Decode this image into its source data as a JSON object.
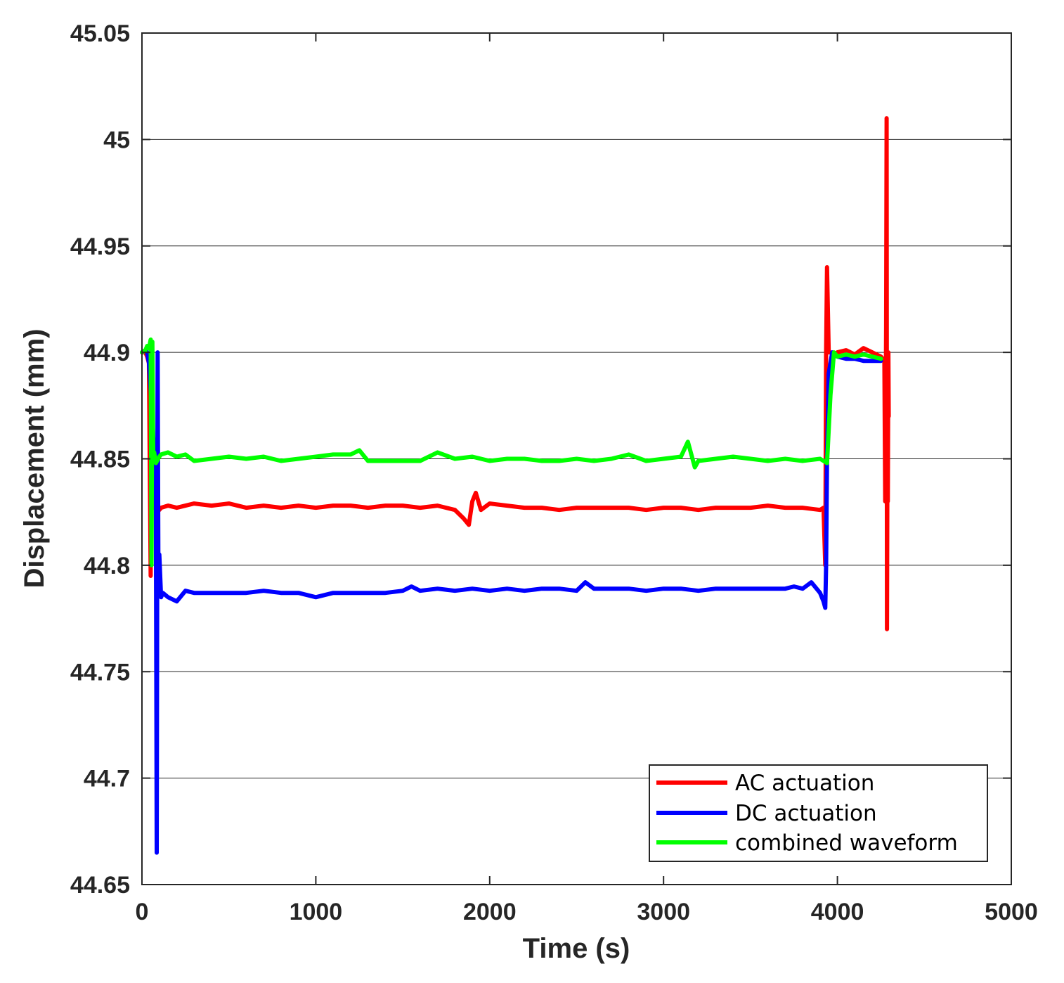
{
  "chart_data": {
    "type": "line",
    "title": "",
    "xlabel": "Time (s)",
    "ylabel": "Displacement (mm)",
    "xlim": [
      0,
      5000
    ],
    "ylim": [
      44.65,
      45.05
    ],
    "xticks": [
      0,
      1000,
      2000,
      3000,
      4000,
      5000
    ],
    "xtick_labels": [
      "0",
      "1000",
      "2000",
      "3000",
      "4000",
      "5000"
    ],
    "yticks": [
      44.65,
      44.7,
      44.75,
      44.8,
      44.85,
      44.9,
      44.95,
      45,
      45.05
    ],
    "ytick_labels": [
      "44.65",
      "44.7",
      "44.75",
      "44.8",
      "44.85",
      "44.9",
      "44.95",
      "45",
      "45.05"
    ],
    "grid": "horizontal",
    "legend": "bottom-right",
    "colors": {
      "ac": "#ff0000",
      "dc": "#0000ff",
      "combined": "#00ff00",
      "grid": "#262626",
      "axis": "#262626"
    },
    "series": [
      {
        "name": "AC actuation",
        "color": "#ff0000",
        "x": [
          0,
          20,
          30,
          40,
          50,
          55,
          60,
          70,
          80,
          90,
          100,
          110,
          150,
          200,
          300,
          400,
          500,
          600,
          700,
          800,
          900,
          1000,
          1100,
          1200,
          1300,
          1400,
          1500,
          1600,
          1700,
          1800,
          1850,
          1880,
          1900,
          1920,
          1950,
          2000,
          2100,
          2200,
          2300,
          2400,
          2500,
          2600,
          2700,
          2800,
          2900,
          3000,
          3100,
          3200,
          3300,
          3400,
          3500,
          3600,
          3700,
          3800,
          3900,
          3920,
          3930,
          3935,
          3940,
          3950,
          3960,
          3980,
          4000,
          4050,
          4100,
          4150,
          4200,
          4250,
          4270,
          4275,
          4280,
          4283,
          4285,
          4288,
          4290,
          4293,
          4295
        ],
        "y": [
          44.9,
          44.9,
          44.898,
          44.895,
          44.795,
          44.89,
          44.83,
          44.827,
          44.827,
          44.828,
          44.826,
          44.827,
          44.828,
          44.827,
          44.829,
          44.828,
          44.829,
          44.827,
          44.828,
          44.827,
          44.828,
          44.827,
          44.828,
          44.828,
          44.827,
          44.828,
          44.828,
          44.827,
          44.828,
          44.826,
          44.822,
          44.819,
          44.83,
          44.834,
          44.826,
          44.829,
          44.828,
          44.827,
          44.827,
          44.826,
          44.827,
          44.827,
          44.827,
          44.827,
          44.826,
          44.827,
          44.827,
          44.826,
          44.827,
          44.827,
          44.827,
          44.828,
          44.827,
          44.827,
          44.826,
          44.827,
          44.8,
          44.9,
          44.94,
          44.9,
          44.9,
          44.899,
          44.9,
          44.901,
          44.899,
          44.902,
          44.9,
          44.898,
          44.896,
          44.83,
          44.912,
          45.01,
          44.77,
          44.87,
          44.83,
          44.9,
          44.87
        ]
      },
      {
        "name": "DC actuation",
        "color": "#0000ff",
        "x": [
          0,
          20,
          30,
          40,
          60,
          70,
          80,
          85,
          90,
          95,
          100,
          110,
          120,
          150,
          200,
          250,
          300,
          400,
          500,
          600,
          700,
          800,
          900,
          1000,
          1100,
          1200,
          1300,
          1400,
          1500,
          1550,
          1600,
          1700,
          1800,
          1900,
          2000,
          2100,
          2200,
          2300,
          2400,
          2500,
          2550,
          2600,
          2700,
          2800,
          2900,
          3000,
          3100,
          3200,
          3300,
          3400,
          3500,
          3600,
          3700,
          3750,
          3800,
          3850,
          3900,
          3920,
          3930,
          3935,
          3940,
          3950,
          3970,
          4000,
          4050,
          4100,
          4150,
          4200,
          4250
        ],
        "y": [
          44.9,
          44.901,
          44.9,
          44.895,
          44.87,
          44.85,
          44.83,
          44.665,
          44.9,
          44.787,
          44.805,
          44.785,
          44.787,
          44.785,
          44.783,
          44.788,
          44.787,
          44.787,
          44.787,
          44.787,
          44.788,
          44.787,
          44.787,
          44.785,
          44.787,
          44.787,
          44.787,
          44.787,
          44.788,
          44.79,
          44.788,
          44.789,
          44.788,
          44.789,
          44.788,
          44.789,
          44.788,
          44.789,
          44.789,
          44.788,
          44.792,
          44.789,
          44.789,
          44.789,
          44.788,
          44.789,
          44.789,
          44.788,
          44.789,
          44.789,
          44.789,
          44.789,
          44.789,
          44.79,
          44.789,
          44.792,
          44.787,
          44.783,
          44.78,
          44.8,
          44.85,
          44.89,
          44.9,
          44.898,
          44.897,
          44.897,
          44.896,
          44.896,
          44.896
        ]
      },
      {
        "name": "combined waveform",
        "color": "#00ff00",
        "x": [
          0,
          20,
          30,
          40,
          50,
          55,
          60,
          65,
          70,
          80,
          100,
          110,
          150,
          200,
          250,
          300,
          400,
          500,
          600,
          700,
          800,
          900,
          1000,
          1100,
          1200,
          1250,
          1300,
          1400,
          1500,
          1600,
          1700,
          1800,
          1900,
          2000,
          2100,
          2200,
          2300,
          2400,
          2500,
          2600,
          2700,
          2800,
          2900,
          3000,
          3100,
          3140,
          3180,
          3200,
          3300,
          3400,
          3500,
          3600,
          3700,
          3800,
          3900,
          3920,
          3940,
          3960,
          3980,
          4000,
          4050,
          4100,
          4150,
          4200,
          4250
        ],
        "y": [
          44.9,
          44.901,
          44.903,
          44.902,
          44.906,
          44.8,
          44.905,
          44.85,
          44.853,
          44.848,
          44.851,
          44.852,
          44.853,
          44.851,
          44.852,
          44.849,
          44.85,
          44.851,
          44.85,
          44.851,
          44.849,
          44.85,
          44.851,
          44.852,
          44.852,
          44.854,
          44.849,
          44.849,
          44.849,
          44.849,
          44.853,
          44.85,
          44.851,
          44.849,
          44.85,
          44.85,
          44.849,
          44.849,
          44.85,
          44.849,
          44.85,
          44.852,
          44.849,
          44.85,
          44.851,
          44.858,
          44.846,
          44.849,
          44.85,
          44.851,
          44.85,
          44.849,
          44.85,
          44.849,
          44.85,
          44.849,
          44.848,
          44.88,
          44.9,
          44.898,
          44.899,
          44.898,
          44.899,
          44.898,
          44.897
        ]
      }
    ]
  }
}
